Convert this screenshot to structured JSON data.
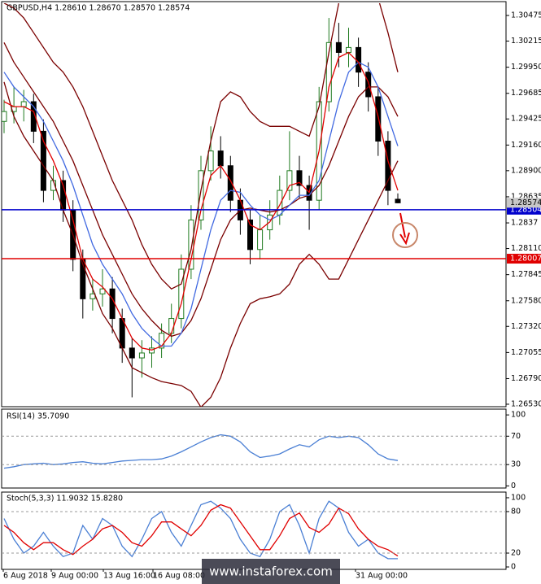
{
  "chart_data": [
    {
      "type": "candlestick",
      "title": "GBPUSD,H4  1.28610 1.28670 1.28570 1.28574",
      "open": [
        1.294,
        1.295,
        1.2955,
        1.296,
        1.293,
        1.287,
        1.288,
        1.285,
        1.28,
        1.276,
        1.2765,
        1.277,
        1.274,
        1.271,
        1.27,
        1.2705,
        1.271,
        1.2725,
        1.274,
        1.279,
        1.284,
        1.289,
        1.291,
        1.2895,
        1.286,
        1.284,
        1.281,
        1.283,
        1.2845,
        1.287,
        1.289,
        1.2875,
        1.286,
        1.296,
        1.302,
        1.301,
        1.3015,
        1.299,
        1.2965,
        1.292,
        1.2861
      ],
      "high": [
        1.2962,
        1.2975,
        1.2972,
        1.2968,
        1.2942,
        1.2895,
        1.289,
        1.286,
        1.281,
        1.278,
        1.279,
        1.2782,
        1.275,
        1.272,
        1.2718,
        1.2722,
        1.2735,
        1.2755,
        1.2805,
        1.2855,
        1.2905,
        1.2935,
        1.2925,
        1.2905,
        1.2872,
        1.285,
        1.2845,
        1.286,
        1.2885,
        1.293,
        1.2905,
        1.2885,
        1.2975,
        1.3045,
        1.304,
        1.3035,
        1.3025,
        1.3,
        1.2975,
        1.293,
        1.2867
      ],
      "low": [
        1.2928,
        1.2938,
        1.294,
        1.2918,
        1.2858,
        1.286,
        1.2838,
        1.2788,
        1.274,
        1.2748,
        1.2752,
        1.2725,
        1.2695,
        1.266,
        1.268,
        1.269,
        1.27,
        1.2715,
        1.273,
        1.278,
        1.283,
        1.288,
        1.2882,
        1.2848,
        1.2825,
        1.2795,
        1.28,
        1.282,
        1.2835,
        1.286,
        1.2862,
        1.283,
        1.285,
        1.295,
        1.2995,
        1.2995,
        1.2975,
        1.295,
        1.2905,
        1.2855,
        1.2857
      ],
      "close": [
        1.295,
        1.2955,
        1.296,
        1.293,
        1.287,
        1.288,
        1.285,
        1.28,
        1.276,
        1.2765,
        1.277,
        1.274,
        1.271,
        1.27,
        1.2705,
        1.271,
        1.2725,
        1.274,
        1.279,
        1.284,
        1.289,
        1.291,
        1.2895,
        1.286,
        1.284,
        1.281,
        1.283,
        1.2845,
        1.287,
        1.289,
        1.2875,
        1.286,
        1.296,
        1.302,
        1.301,
        1.3015,
        1.299,
        1.2965,
        1.292,
        1.287,
        1.28574
      ],
      "up_color": "#1f7a1f",
      "down_color": "#000000",
      "overlays": [
        {
          "color": "#7a0000",
          "values": [
            1.306,
            1.3055,
            1.3045,
            1.303,
            1.3015,
            1.3,
            1.299,
            1.2975,
            1.2955,
            1.293,
            1.2905,
            1.288,
            1.286,
            1.284,
            1.2815,
            1.2795,
            1.278,
            1.277,
            1.2775,
            1.281,
            1.287,
            1.292,
            1.296,
            1.297,
            1.2965,
            1.295,
            1.294,
            1.2935,
            1.2935,
            1.2935,
            1.293,
            1.2925,
            1.2955,
            1.301,
            1.306,
            1.3075,
            1.308,
            1.3075,
            1.3065,
            1.303,
            1.299
          ]
        },
        {
          "color": "#7a0000",
          "values": [
            1.302,
            1.3,
            1.2985,
            1.297,
            1.2955,
            1.294,
            1.292,
            1.29,
            1.2875,
            1.285,
            1.2825,
            1.2805,
            1.2785,
            1.2765,
            1.275,
            1.2738,
            1.2728,
            1.2722,
            1.2725,
            1.2738,
            1.276,
            1.279,
            1.282,
            1.284,
            1.285,
            1.2852,
            1.285,
            1.2848,
            1.285,
            1.2855,
            1.2862,
            1.2865,
            1.2875,
            1.2895,
            1.292,
            1.2945,
            1.2965,
            1.2975,
            1.2975,
            1.2965,
            1.2945
          ]
        },
        {
          "color": "#7a0000",
          "values": [
            1.298,
            1.2945,
            1.2925,
            1.291,
            1.2895,
            1.288,
            1.285,
            1.2825,
            1.2795,
            1.277,
            1.2745,
            1.273,
            1.271,
            1.269,
            1.2685,
            1.268,
            1.2676,
            1.2674,
            1.2672,
            1.2666,
            1.265,
            1.266,
            1.268,
            1.271,
            1.2735,
            1.2755,
            1.276,
            1.2762,
            1.2765,
            1.2775,
            1.2795,
            1.2805,
            1.2795,
            1.278,
            1.278,
            1.28,
            1.282,
            1.284,
            1.286,
            1.288,
            1.29
          ]
        },
        {
          "color": "#4169e1",
          "values": [
            1.299,
            1.2975,
            1.2965,
            1.2955,
            1.294,
            1.292,
            1.29,
            1.2875,
            1.2845,
            1.2815,
            1.2795,
            1.278,
            1.2765,
            1.2745,
            1.273,
            1.272,
            1.2712,
            1.2712,
            1.2725,
            1.275,
            1.279,
            1.283,
            1.286,
            1.287,
            1.2868,
            1.2855,
            1.2845,
            1.284,
            1.2845,
            1.2855,
            1.2865,
            1.2865,
            1.288,
            1.292,
            1.296,
            1.299,
            1.3,
            1.2995,
            1.2975,
            1.2945,
            1.2915
          ]
        },
        {
          "color": "#e00000",
          "values": [
            1.296,
            1.2955,
            1.2955,
            1.295,
            1.292,
            1.29,
            1.2875,
            1.284,
            1.28,
            1.278,
            1.2772,
            1.276,
            1.274,
            1.272,
            1.271,
            1.2708,
            1.2712,
            1.2725,
            1.2755,
            1.28,
            1.285,
            1.2885,
            1.2895,
            1.288,
            1.286,
            1.2835,
            1.283,
            1.2838,
            1.2855,
            1.2875,
            1.2878,
            1.2868,
            1.291,
            1.2975,
            1.3005,
            1.301,
            1.3,
            1.298,
            1.2945,
            1.29,
            1.287
          ]
        }
      ],
      "lines": [
        {
          "value": 1.28504,
          "color": "#0000cc"
        },
        {
          "value": 1.28007,
          "color": "#e00000"
        }
      ],
      "ylim": [
        1.26505,
        1.30599
      ],
      "yticks": [
        1.30475,
        1.30215,
        {
          "value": 1.2995,
          "label": "1.29950"
        },
        1.29685,
        1.29425,
        {
          "value": 1.2916,
          "label": "1.29160"
        },
        {
          "value": 1.289,
          "label": "1.28900"
        },
        1.28635,
        1.2837,
        {
          "value": 1.2811,
          "label": "1.28110"
        },
        1.27845,
        {
          "value": 1.2758,
          "label": "1.27580"
        },
        {
          "value": 1.2732,
          "label": "1.27320"
        },
        1.27055,
        {
          "value": 1.2679,
          "label": "1.26790"
        },
        {
          "value": 1.2653,
          "label": "1.26530"
        }
      ],
      "x_labels": [
        "6 Aug 2018",
        "9 Aug 00:00",
        "13 Aug 16:00",
        "16 Aug 08:00",
        "31 Aug 00:00"
      ]
    },
    {
      "type": "line",
      "title": "RSI(14) 35.7090",
      "series": [
        {
          "color": "#4a7fd4",
          "values": [
            25,
            27,
            30,
            31,
            32,
            30,
            31,
            33,
            34,
            32,
            31,
            33,
            35,
            36,
            37,
            37,
            38,
            42,
            48,
            55,
            62,
            68,
            72,
            70,
            62,
            48,
            40,
            42,
            45,
            52,
            58,
            55,
            65,
            70,
            68,
            70,
            68,
            58,
            45,
            38,
            35.709
          ]
        }
      ],
      "ylim": [
        -3,
        107
      ],
      "yticks": [
        100,
        70,
        30,
        0
      ]
    },
    {
      "type": "line",
      "title": "Stoch(5,3,3) 11.9032 15.8280",
      "series": [
        {
          "color": "#4a7fd4",
          "values": [
            70,
            40,
            20,
            30,
            50,
            30,
            15,
            20,
            60,
            40,
            70,
            60,
            30,
            15,
            40,
            70,
            80,
            50,
            30,
            60,
            90,
            95,
            85,
            70,
            40,
            20,
            15,
            40,
            80,
            90,
            60,
            20,
            70,
            95,
            85,
            50,
            30,
            40,
            20,
            12,
            11.9032
          ]
        },
        {
          "color": "#e00000",
          "values": [
            60,
            50,
            35,
            25,
            35,
            35,
            25,
            18,
            30,
            40,
            55,
            60,
            50,
            35,
            30,
            45,
            65,
            65,
            55,
            45,
            60,
            82,
            90,
            85,
            65,
            45,
            25,
            25,
            45,
            70,
            78,
            57,
            50,
            62,
            85,
            77,
            55,
            40,
            30,
            25,
            15.828
          ]
        }
      ],
      "ylim": [
        -3.5,
        107
      ],
      "yticks": [
        100,
        80,
        20,
        0
      ]
    }
  ],
  "watermark": "www.instaforex.com"
}
